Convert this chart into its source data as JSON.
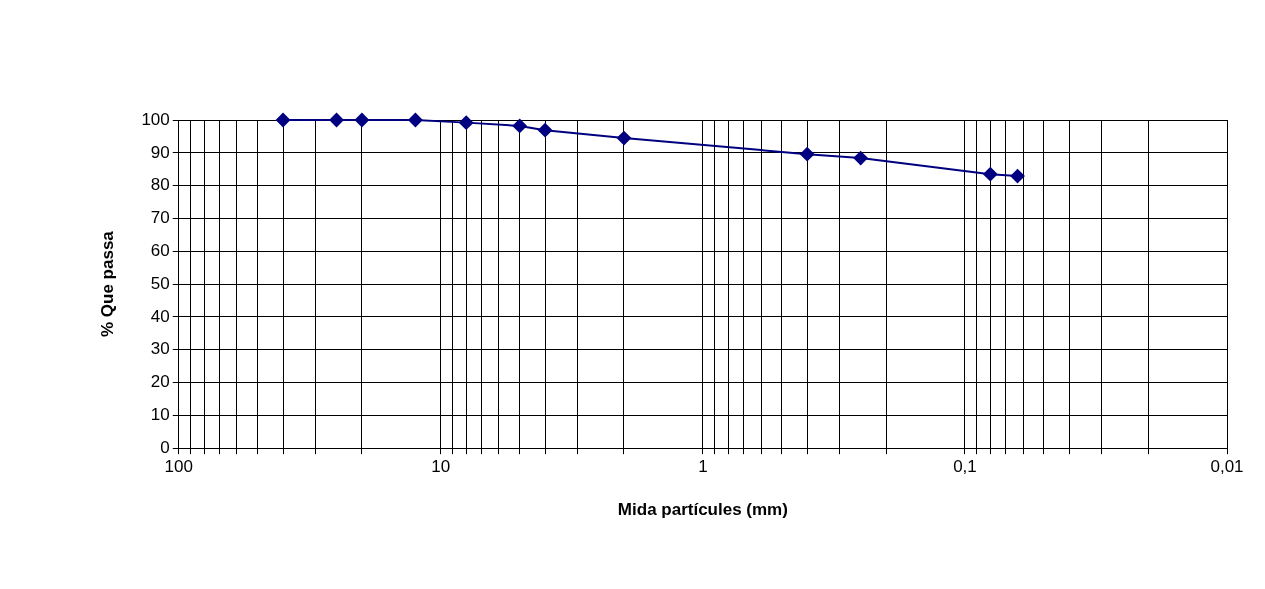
{
  "chart_data": {
    "type": "line",
    "xlabel": "Mida partícules (mm)",
    "ylabel": "% Que passa",
    "x": [
      40,
      25,
      20,
      12.5,
      8,
      5,
      4,
      2,
      0.4,
      0.25,
      0.08,
      0.063
    ],
    "series": [
      {
        "color": "#000080",
        "values": [
          100,
          100,
          100,
          100,
          99.2,
          98.2,
          96.9,
          94.5,
          89.6,
          88.4,
          83.5,
          82.9
        ]
      }
    ],
    "log": "x",
    "xlim": [
      100,
      0.01
    ],
    "xticks": [
      100,
      {
        "value": 90,
        "label": null
      },
      {
        "value": 80,
        "label": null
      },
      {
        "value": 70,
        "label": null
      },
      {
        "value": 60,
        "label": null
      },
      {
        "value": 50,
        "label": null
      },
      {
        "value": 40,
        "label": null
      },
      {
        "value": 30,
        "label": null
      },
      {
        "value": 20,
        "label": null
      },
      10,
      {
        "value": 9,
        "label": null
      },
      {
        "value": 8,
        "label": null
      },
      {
        "value": 7,
        "label": null
      },
      {
        "value": 6,
        "label": null
      },
      {
        "value": 5,
        "label": null
      },
      {
        "value": 4,
        "label": null
      },
      {
        "value": 3,
        "label": null
      },
      {
        "value": 2,
        "label": null
      },
      1,
      {
        "value": 0.9,
        "label": null
      },
      {
        "value": 0.8,
        "label": null
      },
      {
        "value": 0.7,
        "label": null
      },
      {
        "value": 0.6,
        "label": null
      },
      {
        "value": 0.5,
        "label": null
      },
      {
        "value": 0.4,
        "label": null
      },
      {
        "value": 0.3,
        "label": null
      },
      {
        "value": 0.2,
        "label": null
      },
      {
        "value": 0.1,
        "label": "0,1"
      },
      {
        "value": 0.09,
        "label": null
      },
      {
        "value": 0.08,
        "label": null
      },
      {
        "value": 0.07,
        "label": null
      },
      {
        "value": 0.06,
        "label": null
      },
      {
        "value": 0.05,
        "label": null
      },
      {
        "value": 0.04,
        "label": null
      },
      {
        "value": 0.03,
        "label": null
      },
      {
        "value": 0.02,
        "label": null
      },
      {
        "value": 0.01,
        "label": "0,01"
      }
    ],
    "ylim": [
      0,
      100
    ],
    "yticks": [
      0,
      10,
      20,
      30,
      40,
      50,
      60,
      70,
      80,
      90,
      100
    ],
    "grid": true,
    "legend": false,
    "marker": "diamond",
    "line_style": "solid"
  }
}
